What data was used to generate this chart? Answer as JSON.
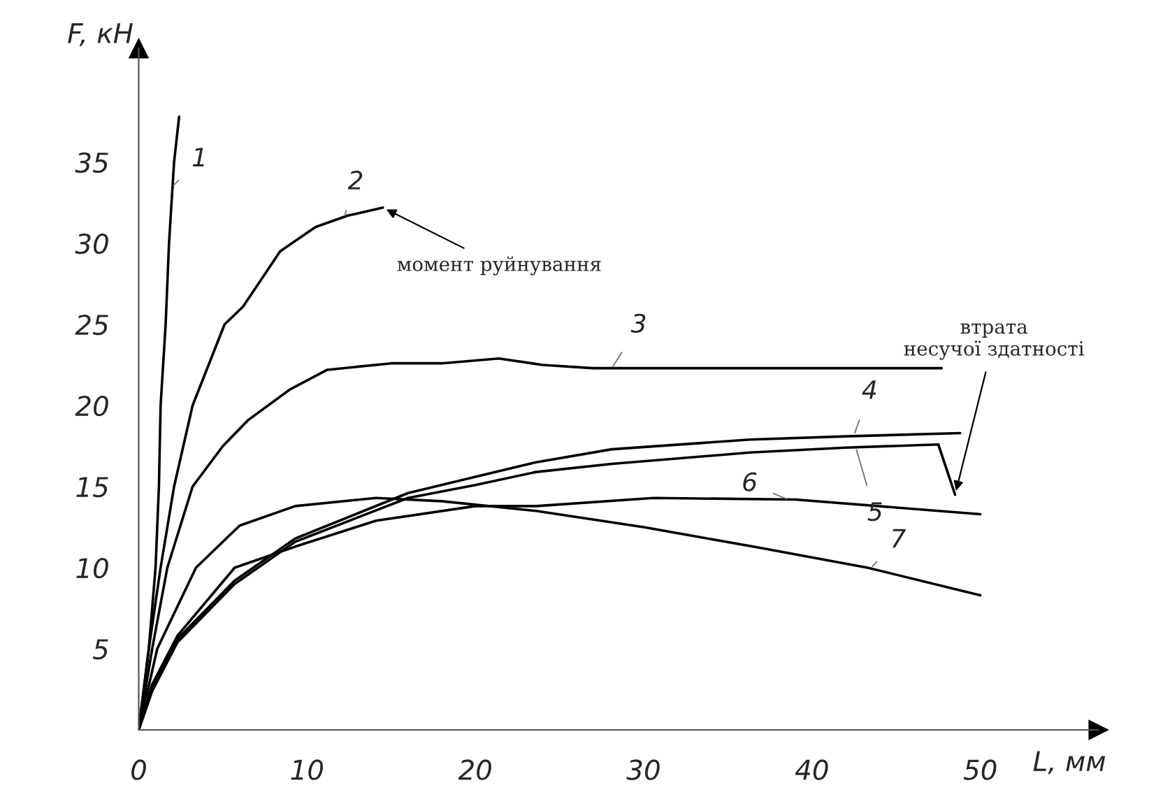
{
  "chart_data": {
    "type": "line",
    "xlabel": "L, мм",
    "ylabel": "F, кН",
    "xlim": [
      0,
      57
    ],
    "ylim": [
      0,
      42
    ],
    "xticks": [
      0,
      10,
      20,
      30,
      40,
      50
    ],
    "yticks": [
      5,
      10,
      15,
      20,
      25,
      30,
      35
    ],
    "grid": false,
    "legend": false,
    "marker": "none",
    "line_style": "solid",
    "series": [
      {
        "color": "#000000",
        "x": [
          0,
          0.6,
          1.0,
          1.2,
          1.3,
          1.6,
          1.8,
          2.1,
          2.4
        ],
        "values": [
          0,
          5,
          10,
          15,
          20,
          25,
          30,
          35,
          37.8
        ]
      },
      {
        "color": "#000000",
        "x": [
          0,
          0.6,
          1.3,
          2.1,
          3.2,
          5.1,
          6.2,
          8.4,
          10.5,
          12.4,
          14.5
        ],
        "values": [
          0,
          5,
          10,
          15,
          20,
          25,
          26.1,
          29.5,
          31,
          31.7,
          32.2
        ]
      },
      {
        "color": "#000000",
        "x": [
          0,
          0.8,
          1.7,
          3.2,
          5,
          6.5,
          9,
          11.2,
          15,
          18,
          21.4,
          24,
          27,
          47.7
        ],
        "values": [
          0,
          5,
          10,
          15,
          17.5,
          19.1,
          21,
          22.2,
          22.6,
          22.6,
          22.9,
          22.5,
          22.3,
          22.3
        ]
      },
      {
        "color": "#000000",
        "x": [
          0,
          0.8,
          2.3,
          5.7,
          9.3,
          16,
          20,
          23.6,
          28.1,
          36.3,
          42,
          48.8
        ],
        "values": [
          0,
          2.6,
          5.6,
          9.2,
          11.8,
          14.6,
          15.6,
          16.5,
          17.3,
          17.9,
          18.1,
          18.3
        ]
      },
      {
        "color": "#000000",
        "x": [
          0,
          0.8,
          2.3,
          5.7,
          9.3,
          16,
          20,
          23.6,
          28.1,
          36.3,
          42,
          47.5,
          48.5
        ],
        "values": [
          0,
          2.4,
          5.4,
          9.0,
          11.6,
          14.3,
          15.1,
          15.9,
          16.4,
          17.1,
          17.4,
          17.6,
          14.5
        ]
      },
      {
        "color": "#000000",
        "x": [
          0,
          0.8,
          2.3,
          5.7,
          9.3,
          14.1,
          20,
          23.6,
          30.6,
          39,
          50
        ],
        "values": [
          0,
          2.8,
          5.8,
          10,
          11.3,
          12.9,
          13.8,
          13.8,
          14.3,
          14.2,
          13.3
        ]
      },
      {
        "color": "#000000",
        "x": [
          0,
          1.1,
          3.4,
          6,
          9.3,
          14.1,
          18,
          23.6,
          30,
          36.5,
          43.3,
          50
        ],
        "values": [
          0,
          5,
          10,
          12.6,
          13.8,
          14.3,
          14.1,
          13.5,
          12.5,
          11.3,
          10,
          8.3
        ]
      }
    ],
    "annotations": [
      {
        "text": "1",
        "x": 2.0,
        "y": 33.5
      },
      {
        "text": "2",
        "x": 12.2,
        "y": 31.6
      },
      {
        "text": "3",
        "x": 28.1,
        "y": 22.3
      },
      {
        "text": "4",
        "x": 42.5,
        "y": 18.2
      },
      {
        "text": "5",
        "x": 42.6,
        "y": 17.4
      },
      {
        "text": "6",
        "x": 38.6,
        "y": 14.2
      },
      {
        "text": "7",
        "x": 43.5,
        "y": 10.0
      },
      {
        "text": "момент руйнування",
        "x": 14.5,
        "y": 32.2
      },
      {
        "text": "втрата\nнесучої здатності",
        "x": 48.5,
        "y": 14.5
      }
    ]
  }
}
